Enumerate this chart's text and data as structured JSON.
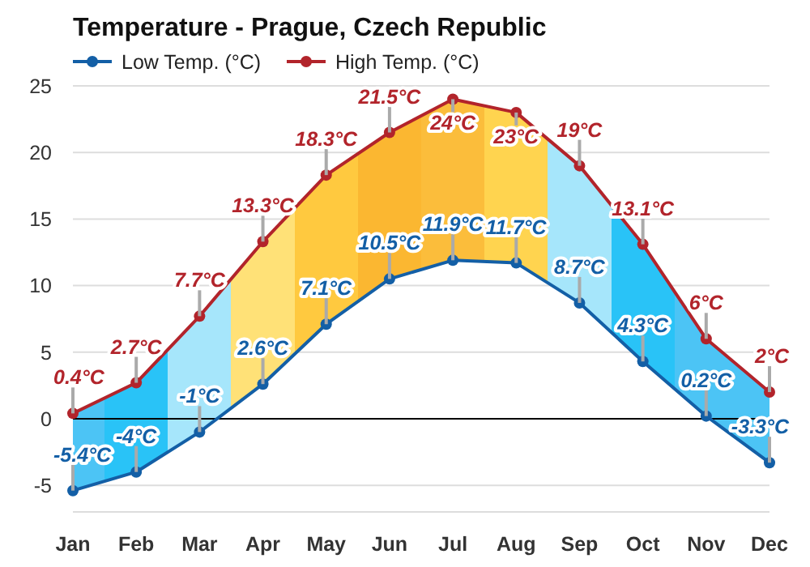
{
  "chart_data": {
    "type": "line",
    "title": "Temperature - Prague, Czech Republic",
    "categories": [
      "Jan",
      "Feb",
      "Mar",
      "Apr",
      "May",
      "Jun",
      "Jul",
      "Aug",
      "Sep",
      "Oct",
      "Nov",
      "Dec"
    ],
    "series": [
      {
        "name": "Low Temp. (°C)",
        "color": "#135fa6",
        "marker": "circle",
        "values": [
          -5.4,
          -4,
          -1,
          2.6,
          7.1,
          10.5,
          11.9,
          11.7,
          8.7,
          4.3,
          0.2,
          -3.3
        ],
        "value_labels": [
          "-5.4°C",
          "-4°C",
          "-1°C",
          "2.6°C",
          "7.1°C",
          "10.5°C",
          "11.9°C",
          "11.7°C",
          "8.7°C",
          "4.3°C",
          "0.2°C",
          "-3.3°C"
        ]
      },
      {
        "name": "High Temp. (°C)",
        "color": "#b2242b",
        "marker": "circle",
        "values": [
          0.4,
          2.7,
          7.7,
          13.3,
          18.3,
          21.5,
          24,
          23,
          19,
          13.1,
          6,
          2
        ],
        "value_labels": [
          "0.4°C",
          "2.7°C",
          "7.7°C",
          "13.3°C",
          "18.3°C",
          "21.5°C",
          "24°C",
          "23°C",
          "19°C",
          "13.1°C",
          "6°C",
          "2°C"
        ],
        "lower": [
          -5.4,
          -4,
          -1,
          2.6,
          7.1,
          10.5,
          11.9,
          11.7,
          8.7,
          4.3,
          0.2,
          -3.3
        ],
        "upper": [
          0.4,
          2.7,
          7.7,
          13.3,
          18.3,
          21.5,
          24,
          23,
          19,
          13.1,
          6,
          2
        ],
        "colors": [
          "#4cc4f5",
          "#29c3f7",
          "#a6e6fb",
          "#ffe177",
          "#ffc93f",
          "#fbb731",
          "#fbbd3b",
          "#ffd44f",
          "#a6e6fb",
          "#29c3f7",
          "#4cc4f5",
          "#4cc4f5"
        ]
      }
    ],
    "ylim": [
      -7,
      25
    ],
    "yticks": [
      -5,
      0,
      5,
      10,
      15,
      20,
      25
    ],
    "grid": "y",
    "legend": "top left",
    "ref_lines": [
      {
        "axis": "y",
        "value": 0,
        "color": "#000000"
      }
    ]
  }
}
